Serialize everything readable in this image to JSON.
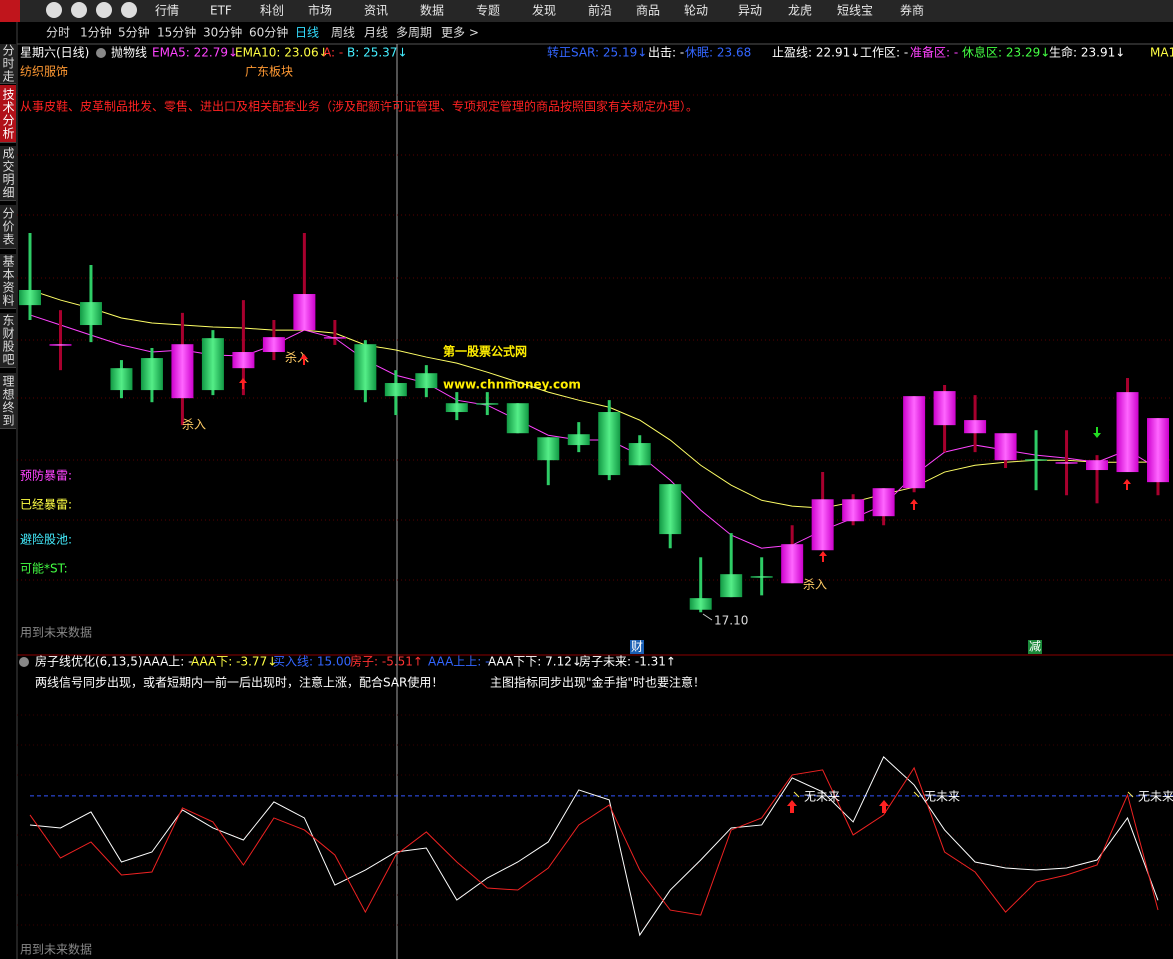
{
  "menu": [
    "行情",
    "ETF",
    "科创",
    "市场",
    "资讯",
    "数据",
    "专题",
    "发现",
    "前沿",
    "商品",
    "轮动",
    "异动",
    "龙虎",
    "短线宝",
    "券商"
  ],
  "periods": [
    {
      "label": "分时",
      "active": false
    },
    {
      "label": "1分钟",
      "active": false
    },
    {
      "label": "5分钟",
      "active": false
    },
    {
      "label": "15分钟",
      "active": false
    },
    {
      "label": "30分钟",
      "active": false
    },
    {
      "label": "60分钟",
      "active": false
    },
    {
      "label": "日线",
      "active": true
    },
    {
      "label": "周线",
      "active": false
    },
    {
      "label": "月线",
      "active": false
    },
    {
      "label": "多周期",
      "active": false
    },
    {
      "label": "更多 >",
      "active": false
    }
  ],
  "sidebar": [
    {
      "label": "分时走势",
      "active": false
    },
    {
      "label": "技术分析",
      "active": true
    },
    {
      "label": "成交明细",
      "active": false
    },
    {
      "label": "分价表",
      "active": false
    },
    {
      "label": "基本资料",
      "active": false
    },
    {
      "label": "东财股吧",
      "active": false
    },
    {
      "label": "理想终到",
      "active": false
    }
  ],
  "chart_data": [
    {
      "type": "candlestick",
      "header": [
        {
          "text": "星期六(日线)",
          "color": "#ffffff"
        },
        {
          "text": "抛物线",
          "color": "#ffffff"
        },
        {
          "text": "EMA5: 22.79↓",
          "color": "#ff44ff"
        },
        {
          "text": "EMA10: 23.06↓",
          "color": "#ffff44"
        },
        {
          "text": "A: -",
          "color": "#ff3333"
        },
        {
          "text": "B: 25.37↓",
          "color": "#44eeff"
        },
        {
          "text": "转正SAR: 25.19↓",
          "color": "#3366ff"
        },
        {
          "text": "出击: -",
          "color": "#ffffff"
        },
        {
          "text": "休眠: 23.68",
          "color": "#3366ff"
        },
        {
          "text": "止盈线: 22.91↓",
          "color": "#ffffff"
        },
        {
          "text": "工作区: -",
          "color": "#ffffff"
        },
        {
          "text": "准备区: -",
          "color": "#ff44ff"
        },
        {
          "text": "休息区: 23.29↓",
          "color": "#44ff44"
        },
        {
          "text": "生命: 23.91↓",
          "color": "#ffffff"
        },
        {
          "text": "MA1",
          "color": "#ffff44"
        }
      ],
      "sector_tags": [
        "纺织服饰",
        "广东板块"
      ],
      "description": "从事皮鞋、皮革制品批发、零售、进出口及相关配套业务（涉及配额许可证管理、专项规定管理的商品按照国家有关规定办理）。",
      "watermark": [
        "第一股票公式网",
        "www.chnmoney.com"
      ],
      "side_labels": [
        {
          "text": "预防暴雷:",
          "color": "#ff44ff"
        },
        {
          "text": "已经暴雷:",
          "color": "#ffff44"
        },
        {
          "text": "避险股池:",
          "color": "#44eeff"
        },
        {
          "text": "可能*ST:",
          "color": "#44ff44"
        }
      ],
      "footnote": "用到未来数据",
      "signal_labels": [
        "杀入",
        "杀入",
        "杀入"
      ],
      "min_label": "17.10",
      "event_tags": [
        "财",
        "减"
      ],
      "categories": [
        null,
        null,
        null,
        null,
        null,
        null,
        null,
        null,
        null,
        null,
        null,
        null,
        null,
        null,
        null,
        null,
        null,
        null,
        null,
        null,
        null,
        null,
        null,
        null,
        null,
        null,
        null,
        null,
        null,
        null,
        null,
        null,
        null,
        null,
        null,
        null,
        null,
        null
      ],
      "open": [
        29.88,
        27.73,
        29.4,
        26.78,
        27.18,
        25.59,
        27.97,
        26.78,
        27.42,
        28.29,
        27.97,
        27.73,
        26.19,
        26.58,
        25.39,
        25.39,
        25.39,
        24.04,
        24.16,
        25.04,
        23.81,
        22.18,
        17.66,
        18.61,
        18.53,
        18.25,
        19.56,
        20.71,
        20.91,
        22.02,
        24.52,
        24.2,
        23.13,
        23.17,
        23.01,
        22.74,
        22.66,
        22.26
      ],
      "high": [
        32.14,
        29.08,
        30.87,
        27.1,
        27.58,
        28.97,
        28.29,
        29.48,
        28.69,
        32.14,
        28.69,
        27.89,
        26.7,
        26.9,
        25.83,
        25.83,
        25.39,
        24.04,
        24.64,
        25.51,
        24.12,
        22.18,
        19.28,
        20.24,
        19.28,
        20.55,
        22.66,
        21.78,
        22.02,
        25.67,
        26.11,
        25.71,
        24.2,
        24.32,
        24.32,
        23.33,
        26.39,
        24.8
      ],
      "low": [
        28.69,
        26.7,
        27.81,
        25.59,
        25.43,
        24.52,
        25.71,
        25.71,
        27.1,
        28.29,
        27.7,
        25.43,
        24.92,
        25.63,
        24.72,
        24.92,
        24.2,
        22.14,
        23.45,
        22.34,
        22.93,
        19.64,
        17.1,
        17.7,
        17.77,
        18.25,
        19.56,
        20.55,
        20.55,
        21.86,
        23.45,
        23.45,
        22.82,
        21.94,
        21.74,
        21.42,
        22.66,
        21.74
      ],
      "close": [
        29.28,
        27.73,
        28.49,
        25.91,
        25.91,
        27.73,
        25.91,
        27.42,
        28.01,
        29.72,
        28.01,
        25.91,
        25.67,
        25.99,
        25.04,
        25.35,
        24.2,
        23.13,
        23.73,
        22.54,
        22.93,
        20.2,
        17.2,
        17.7,
        18.49,
        19.8,
        21.58,
        21.58,
        22.02,
        25.67,
        25.87,
        24.72,
        24.2,
        23.13,
        23.05,
        23.13,
        25.83,
        24.8
      ],
      "lines": [
        {
          "color": "#ffff66",
          "values": [
            29.88,
            29.48,
            29.16,
            28.77,
            28.57,
            28.49,
            28.41,
            28.37,
            28.29,
            28.29,
            28.17,
            27.7,
            27.5,
            27.22,
            26.98,
            26.62,
            26.23,
            25.83,
            25.51,
            25.23,
            24.72,
            23.93,
            22.93,
            22.14,
            21.54,
            21.31,
            21.23,
            21.47,
            21.78,
            22.06,
            22.66,
            22.93,
            23.05,
            23.13,
            23.13,
            23.05,
            23.05,
            23.06
          ]
        },
        {
          "color": "#ff44ff",
          "values": [
            28.89,
            28.49,
            28.09,
            27.7,
            27.42,
            27.5,
            27.3,
            27.26,
            27.7,
            28.29,
            27.97,
            27.1,
            26.5,
            26.19,
            25.51,
            25.31,
            24.72,
            24.12,
            23.93,
            23.93,
            23.33,
            22.34,
            21.15,
            20.16,
            19.64,
            19.76,
            20.35,
            20.83,
            21.35,
            22.54,
            23.45,
            23.73,
            23.53,
            23.33,
            23.21,
            23.05,
            23.53,
            22.79
          ]
        }
      ],
      "up_color": "#ff33ff",
      "down_color": "#2ecc66",
      "up_wick": "#a8002e",
      "down_wick": "#2ecc66",
      "ylim": [
        16,
        39
      ]
    },
    {
      "type": "line",
      "header": [
        {
          "text": "房子线优化(6,13,5)",
          "color": "#ffffff"
        },
        {
          "text": "AAA上: -",
          "color": "#ffffff"
        },
        {
          "text": "AAA下: -3.77↓",
          "color": "#ffff44"
        },
        {
          "text": "买入线: 15.00",
          "color": "#3366ff"
        },
        {
          "text": "房子: -5.51↑",
          "color": "#ff3333"
        },
        {
          "text": "AAA上上: -",
          "color": "#3366ff"
        },
        {
          "text": "AAA下下: 7.12↓",
          "color": "#ffffff"
        },
        {
          "text": "房子未来: -1.31↑",
          "color": "#ffffff"
        }
      ],
      "notes": [
        "两线信号同步出现，或者短期内一前一后出现时，注意上涨，配合SAR使用！",
        "主图指标同步出现\"金手指\"时也要注意！"
      ],
      "signal_labels": [
        "无未来",
        "无未来",
        "无未来"
      ],
      "footnote": "用到未来数据",
      "buy_line": 15,
      "series": [
        {
          "color": "#ffffff",
          "values": [
            9.78,
            9.24,
            12.12,
            3.12,
            4.92,
            12.48,
            9.24,
            7.08,
            13.92,
            11.04,
            -1.02,
            1.68,
            4.92,
            5.64,
            -3.72,
            0.24,
            3.12,
            6.72,
            16.08,
            14.28,
            -10.02,
            -1.92,
            3.48,
            9.24,
            9.78,
            18.24,
            15.72,
            10.32,
            22.02,
            16.98,
            8.88,
            3.12,
            2.04,
            1.68,
            2.04,
            3.48,
            11.04,
            -3.77
          ]
        },
        {
          "color": "#ee2222",
          "values": [
            11.58,
            3.84,
            6.72,
            0.78,
            1.32,
            12.84,
            10.32,
            2.58,
            11.04,
            8.88,
            4.38,
            -5.88,
            4.38,
            8.52,
            3.12,
            -1.56,
            -1.92,
            2.04,
            9.78,
            13.38,
            1.68,
            -5.52,
            -6.42,
            8.88,
            11.04,
            18.78,
            19.68,
            7.98,
            11.58,
            20.04,
            4.92,
            1.32,
            -5.88,
            -0.48,
            0.78,
            2.58,
            15.18,
            -5.51
          ]
        }
      ],
      "ylim": [
        -13.6,
        38
      ]
    }
  ]
}
